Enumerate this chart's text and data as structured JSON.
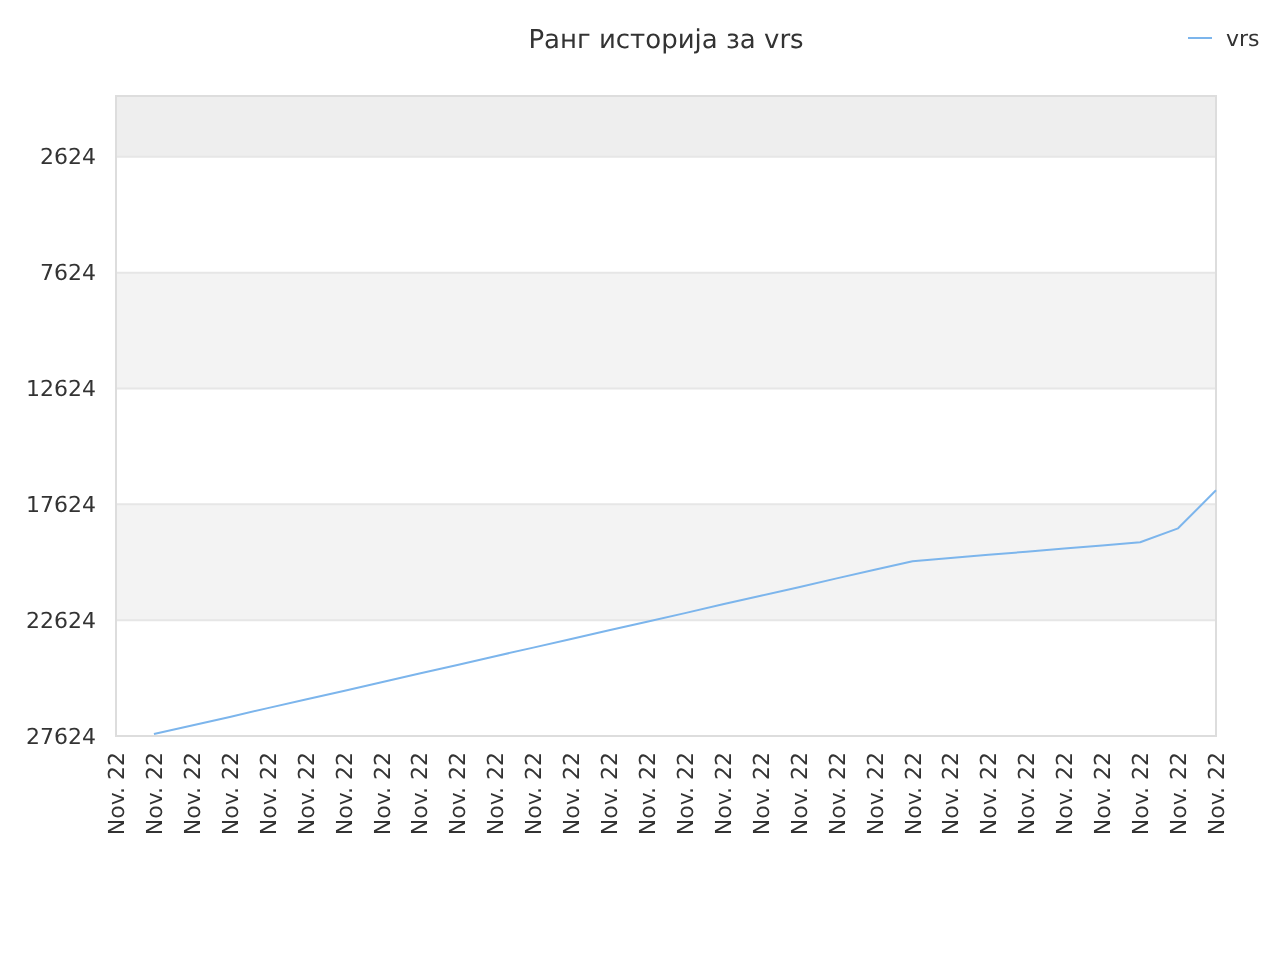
{
  "chart_data": {
    "type": "line",
    "title": "Ранг историја за vrs",
    "categories": [
      "Nov. 22",
      "Nov. 22",
      "Nov. 22",
      "Nov. 22",
      "Nov. 22",
      "Nov. 22",
      "Nov. 22",
      "Nov. 22",
      "Nov. 22",
      "Nov. 22",
      "Nov. 22",
      "Nov. 22",
      "Nov. 22",
      "Nov. 22",
      "Nov. 22",
      "Nov. 22",
      "Nov. 22",
      "Nov. 22",
      "Nov. 22",
      "Nov. 22",
      "Nov. 22",
      "Nov. 22",
      "Nov. 22",
      "Nov. 22",
      "Nov. 22",
      "Nov. 22",
      "Nov. 22",
      "Nov. 22",
      "Nov. 22",
      "Nov. 22"
    ],
    "series": [
      {
        "name": "vrs",
        "color": "#7cb5ec",
        "values": [
          null,
          27540,
          27170,
          26800,
          26420,
          26050,
          25680,
          25300,
          24930,
          24560,
          24180,
          23810,
          23440,
          23060,
          22690,
          22320,
          21940,
          21570,
          21200,
          20820,
          20450,
          20080,
          19940,
          19800,
          19670,
          19530,
          19400,
          19260,
          18660,
          17020
        ]
      }
    ],
    "ylim": [
      27624,
      0
    ],
    "yticks": [
      2624,
      7624,
      12624,
      17624,
      22624,
      27624
    ],
    "bands": [
      {
        "axis": "y",
        "from": 0,
        "to": 2624,
        "color": "#eeeeee"
      },
      {
        "axis": "y",
        "from": 7624,
        "to": 12624,
        "color": "#f3f3f3"
      },
      {
        "axis": "y",
        "from": 17624,
        "to": 22624,
        "color": "#f3f3f3"
      }
    ],
    "grid": "y",
    "legend": "top right",
    "marker": "none",
    "line_style": "solid"
  }
}
